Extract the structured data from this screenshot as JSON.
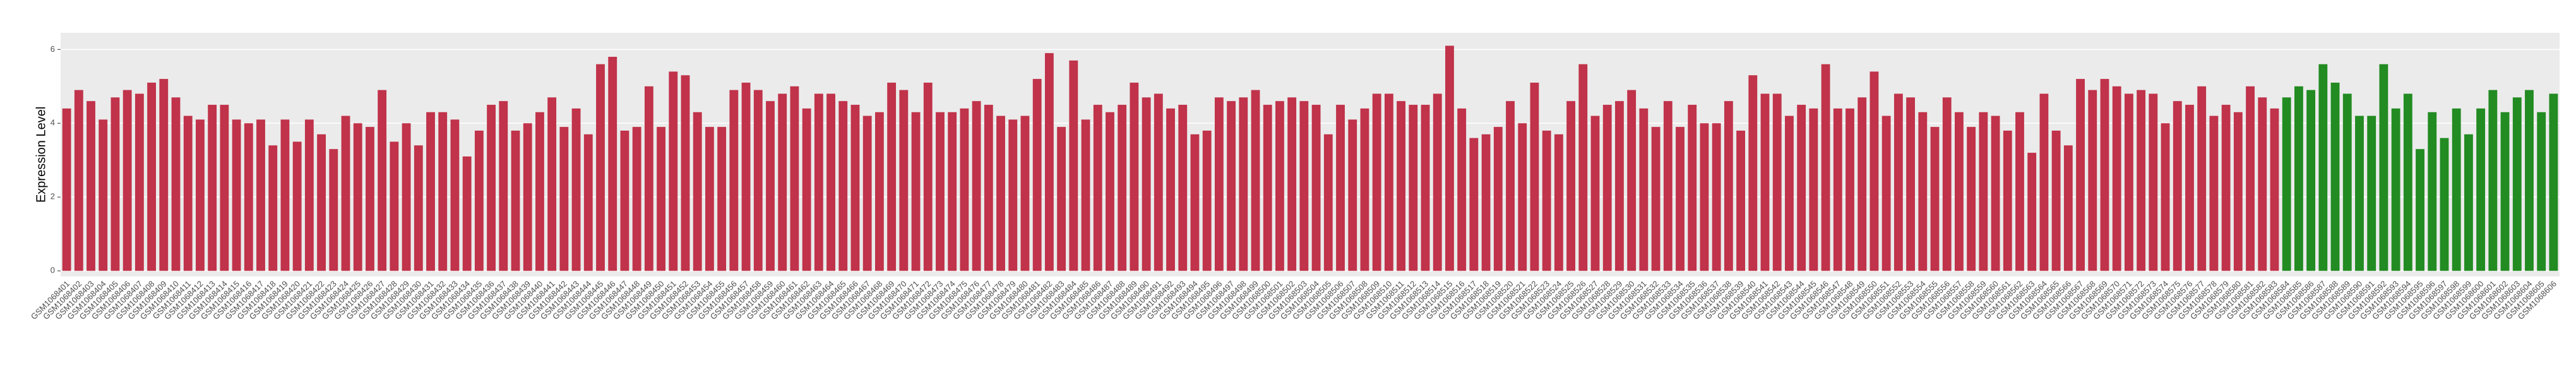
{
  "chart_data": {
    "type": "bar",
    "y_label": "Expression Level",
    "categories": [
      "GSM1068401",
      "GSM1068402",
      "GSM1068403",
      "GSM1068404",
      "GSM1068405",
      "GSM1068406",
      "GSM1068407",
      "GSM1068408",
      "GSM1068409",
      "GSM1068410",
      "GSM1068411",
      "GSM1068412",
      "GSM1068413",
      "GSM1068414",
      "GSM1068415",
      "GSM1068416",
      "GSM1068417",
      "GSM1068418",
      "GSM1068419",
      "GSM1068420",
      "GSM1068421",
      "GSM1068422",
      "GSM1068423",
      "GSM1068424",
      "GSM1068425",
      "GSM1068426",
      "GSM1068427",
      "GSM1068428",
      "GSM1068429",
      "GSM1068430",
      "GSM1068431",
      "GSM1068432",
      "GSM1068433",
      "GSM1068434",
      "GSM1068435",
      "GSM1068436",
      "GSM1068437",
      "GSM1068438",
      "GSM1068439",
      "GSM1068440",
      "GSM1068441",
      "GSM1068442",
      "GSM1068443",
      "GSM1068444",
      "GSM1068445",
      "GSM1068446",
      "GSM1068447",
      "GSM1068448",
      "GSM1068449",
      "GSM1068450",
      "GSM1068451",
      "GSM1068452",
      "GSM1068453",
      "GSM1068454",
      "GSM1068455",
      "GSM1068456",
      "GSM1068457",
      "GSM1068458",
      "GSM1068459",
      "GSM1068460",
      "GSM1068461",
      "GSM1068462",
      "GSM1068463",
      "GSM1068464",
      "GSM1068465",
      "GSM1068466",
      "GSM1068467",
      "GSM1068468",
      "GSM1068469",
      "GSM1068470",
      "GSM1068471",
      "GSM1068472",
      "GSM1068473",
      "GSM1068474",
      "GSM1068475",
      "GSM1068476",
      "GSM1068477",
      "GSM1068478",
      "GSM1068479",
      "GSM1068480",
      "GSM1068481",
      "GSM1068482",
      "GSM1068483",
      "GSM1068484",
      "GSM1068485",
      "GSM1068486",
      "GSM1068487",
      "GSM1068488",
      "GSM1068489",
      "GSM1068490",
      "GSM1068491",
      "GSM1068492",
      "GSM1068493",
      "GSM1068494",
      "GSM1068495",
      "GSM1068496",
      "GSM1068497",
      "GSM1068498",
      "GSM1068499",
      "GSM1068500",
      "GSM1068501",
      "GSM1068502",
      "GSM1068503",
      "GSM1068504",
      "GSM1068505",
      "GSM1068506",
      "GSM1068507",
      "GSM1068508",
      "GSM1068509",
      "GSM1068510",
      "GSM1068511",
      "GSM1068512",
      "GSM1068513",
      "GSM1068514",
      "GSM1068515",
      "GSM1068516",
      "GSM1068517",
      "GSM1068518",
      "GSM1068519",
      "GSM1068520",
      "GSM1068521",
      "GSM1068522",
      "GSM1068523",
      "GSM1068524",
      "GSM1068525",
      "GSM1068526",
      "GSM1068527",
      "GSM1068528",
      "GSM1068529",
      "GSM1068530",
      "GSM1068531",
      "GSM1068532",
      "GSM1068533",
      "GSM1068534",
      "GSM1068535",
      "GSM1068536",
      "GSM1068537",
      "GSM1068538",
      "GSM1068539",
      "GSM1068540",
      "GSM1068541",
      "GSM1068542",
      "GSM1068543",
      "GSM1068544",
      "GSM1068545",
      "GSM1068546",
      "GSM1068547",
      "GSM1068548",
      "GSM1068549",
      "GSM1068550",
      "GSM1068551",
      "GSM1068552",
      "GSM1068553",
      "GSM1068554",
      "GSM1068555",
      "GSM1068556",
      "GSM1068557",
      "GSM1068558",
      "GSM1068559",
      "GSM1068560",
      "GSM1068561",
      "GSM1068562",
      "GSM1068563",
      "GSM1068564",
      "GSM1068565",
      "GSM1068566",
      "GSM1068567",
      "GSM1068568",
      "GSM1068569",
      "GSM1068570",
      "GSM1068571",
      "GSM1068572",
      "GSM1068573",
      "GSM1068574",
      "GSM1068575",
      "GSM1068576",
      "GSM1068577",
      "GSM1068578",
      "GSM1068579",
      "GSM1068580",
      "GSM1068581",
      "GSM1068582",
      "GSM1068583",
      "GSM1068584",
      "GSM1068585",
      "GSM1068586",
      "GSM1068587",
      "GSM1068588",
      "GSM1068589",
      "GSM1068590",
      "GSM1068591",
      "GSM1068592",
      "GSM1068593",
      "GSM1068594",
      "GSM1068595",
      "GSM1068596",
      "GSM1068597",
      "GSM1068598",
      "GSM1068599",
      "GSM1068600",
      "GSM1068601",
      "GSM1068602",
      "GSM1068603",
      "GSM1068604",
      "GSM1068605",
      "GSM1068606"
    ],
    "values": [
      4.4,
      4.9,
      4.6,
      4.1,
      4.7,
      4.9,
      4.8,
      5.1,
      5.2,
      4.7,
      4.2,
      4.1,
      4.5,
      4.5,
      4.1,
      4.0,
      4.1,
      3.4,
      4.1,
      3.5,
      4.1,
      3.7,
      3.3,
      4.2,
      4.0,
      3.9,
      4.9,
      3.5,
      4.0,
      3.4,
      4.3,
      4.3,
      4.1,
      3.1,
      3.8,
      4.5,
      4.6,
      3.8,
      4.0,
      4.3,
      4.7,
      3.9,
      4.4,
      3.7,
      5.6,
      5.8,
      3.8,
      3.9,
      5.0,
      3.9,
      5.4,
      5.3,
      4.3,
      3.9,
      3.9,
      4.9,
      5.1,
      4.9,
      4.6,
      4.8,
      5.0,
      4.4,
      4.8,
      4.8,
      4.6,
      4.5,
      4.2,
      4.3,
      5.1,
      4.9,
      4.3,
      5.1,
      4.3,
      4.3,
      4.4,
      4.6,
      4.5,
      4.2,
      4.1,
      4.2,
      5.2,
      5.9,
      3.9,
      5.7,
      4.1,
      4.5,
      4.3,
      4.5,
      5.1,
      4.7,
      4.8,
      4.4,
      4.5,
      3.7,
      3.8,
      4.7,
      4.6,
      4.7,
      4.9,
      4.5,
      4.6,
      4.7,
      4.6,
      4.5,
      3.7,
      4.5,
      4.1,
      4.4,
      4.8,
      4.8,
      4.6,
      4.5,
      4.5,
      4.8,
      6.1,
      4.4,
      3.6,
      3.7,
      3.9,
      4.6,
      4.0,
      5.1,
      3.8,
      3.7,
      4.6,
      5.6,
      4.2,
      4.5,
      4.6,
      4.9,
      4.4,
      3.9,
      4.6,
      3.9,
      4.5,
      4.0,
      4.0,
      4.6,
      3.8,
      5.3,
      4.8,
      4.8,
      4.2,
      4.5,
      4.4,
      5.6,
      4.4,
      4.4,
      4.7,
      5.4,
      4.2,
      4.8,
      4.7,
      4.3,
      3.9,
      4.7,
      4.3,
      3.9,
      4.3,
      4.2,
      3.8,
      4.3,
      3.2,
      4.8,
      3.8,
      3.4,
      5.2,
      4.9,
      5.2,
      5.0,
      4.8,
      4.9,
      4.8,
      4.0,
      4.6,
      4.5,
      5.0,
      4.2,
      4.5,
      4.3,
      5.0,
      4.7,
      4.4,
      4.7,
      5.0,
      4.9,
      5.6,
      5.1,
      4.8,
      4.2,
      4.2,
      5.6,
      4.4,
      4.8,
      3.3,
      4.3,
      3.6,
      4.4,
      3.7,
      4.4,
      4.9,
      4.3,
      4.7,
      4.9,
      4.3,
      4.8
    ],
    "colors": [
      "#c0334a",
      "#c0334a",
      "#c0334a",
      "#c0334a",
      "#c0334a",
      "#c0334a",
      "#c0334a",
      "#c0334a",
      "#c0334a",
      "#c0334a",
      "#c0334a",
      "#c0334a",
      "#c0334a",
      "#c0334a",
      "#c0334a",
      "#c0334a",
      "#c0334a",
      "#c0334a",
      "#c0334a",
      "#c0334a",
      "#c0334a",
      "#c0334a",
      "#c0334a",
      "#c0334a",
      "#c0334a",
      "#c0334a",
      "#c0334a",
      "#c0334a",
      "#c0334a",
      "#c0334a",
      "#c0334a",
      "#c0334a",
      "#c0334a",
      "#c0334a",
      "#c0334a",
      "#c0334a",
      "#c0334a",
      "#c0334a",
      "#c0334a",
      "#c0334a",
      "#c0334a",
      "#c0334a",
      "#c0334a",
      "#c0334a",
      "#c0334a",
      "#c0334a",
      "#c0334a",
      "#c0334a",
      "#c0334a",
      "#c0334a",
      "#c0334a",
      "#c0334a",
      "#c0334a",
      "#c0334a",
      "#c0334a",
      "#c0334a",
      "#c0334a",
      "#c0334a",
      "#c0334a",
      "#c0334a",
      "#c0334a",
      "#c0334a",
      "#c0334a",
      "#c0334a",
      "#c0334a",
      "#c0334a",
      "#c0334a",
      "#c0334a",
      "#c0334a",
      "#c0334a",
      "#c0334a",
      "#c0334a",
      "#c0334a",
      "#c0334a",
      "#c0334a",
      "#c0334a",
      "#c0334a",
      "#c0334a",
      "#c0334a",
      "#c0334a",
      "#c0334a",
      "#c0334a",
      "#c0334a",
      "#c0334a",
      "#c0334a",
      "#c0334a",
      "#c0334a",
      "#c0334a",
      "#c0334a",
      "#c0334a",
      "#c0334a",
      "#c0334a",
      "#c0334a",
      "#c0334a",
      "#c0334a",
      "#c0334a",
      "#c0334a",
      "#c0334a",
      "#c0334a",
      "#c0334a",
      "#c0334a",
      "#c0334a",
      "#c0334a",
      "#c0334a",
      "#c0334a",
      "#c0334a",
      "#c0334a",
      "#c0334a",
      "#c0334a",
      "#c0334a",
      "#c0334a",
      "#c0334a",
      "#c0334a",
      "#c0334a",
      "#c0334a",
      "#c0334a",
      "#c0334a",
      "#c0334a",
      "#c0334a",
      "#c0334a",
      "#c0334a",
      "#c0334a",
      "#c0334a",
      "#c0334a",
      "#c0334a",
      "#c0334a",
      "#c0334a",
      "#c0334a",
      "#c0334a",
      "#c0334a",
      "#c0334a",
      "#c0334a",
      "#c0334a",
      "#c0334a",
      "#c0334a",
      "#c0334a",
      "#c0334a",
      "#c0334a",
      "#c0334a",
      "#c0334a",
      "#c0334a",
      "#c0334a",
      "#c0334a",
      "#c0334a",
      "#c0334a",
      "#c0334a",
      "#c0334a",
      "#c0334a",
      "#c0334a",
      "#c0334a",
      "#c0334a",
      "#c0334a",
      "#c0334a",
      "#c0334a",
      "#c0334a",
      "#c0334a",
      "#c0334a",
      "#c0334a",
      "#c0334a",
      "#c0334a",
      "#c0334a",
      "#c0334a",
      "#c0334a",
      "#c0334a",
      "#c0334a",
      "#c0334a",
      "#c0334a",
      "#c0334a",
      "#c0334a",
      "#c0334a",
      "#c0334a",
      "#c0334a",
      "#c0334a",
      "#c0334a",
      "#c0334a",
      "#c0334a",
      "#c0334a",
      "#c0334a",
      "#c0334a",
      "#c0334a",
      "#c0334a",
      "#c0334a",
      "#c0334a",
      "#228b22",
      "#228b22",
      "#228b22",
      "#228b22",
      "#228b22",
      "#228b22",
      "#228b22",
      "#228b22",
      "#228b22",
      "#228b22",
      "#228b22",
      "#228b22",
      "#228b22",
      "#228b22",
      "#228b22",
      "#228b22",
      "#228b22",
      "#228b22",
      "#228b22",
      "#228b22",
      "#228b22",
      "#228b22",
      "#228b22"
    ],
    "ylim": [
      -0.15,
      6.45
    ],
    "yticks": [
      0,
      2,
      4,
      6
    ],
    "grid": true
  }
}
